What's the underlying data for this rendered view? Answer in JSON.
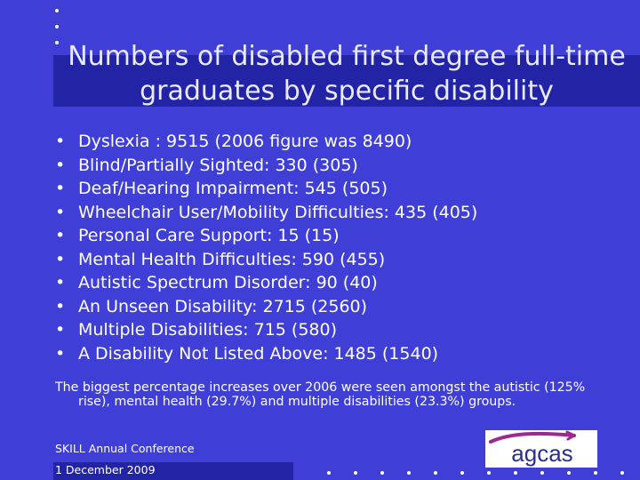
{
  "slide": {
    "title": "Numbers of disabled first degree full-time graduates by specific disability",
    "bullets": [
      "Dyslexia : 9515 (2006 figure was 8490)",
      "Blind/Partially Sighted: 330 (305)",
      "Deaf/Hearing Impairment: 545 (505)",
      "Wheelchair User/Mobility Difficulties: 435 (405)",
      "Personal Care Support: 15 (15)",
      "Mental Health Difficulties: 590 (455)",
      "Autistic Spectrum Disorder: 90 (40)",
      "An Unseen Disability: 2715 (2560)",
      "Multiple Disabilities: 715 (580)",
      "A Disability Not Listed Above: 1485 (1540)"
    ],
    "summary": "The biggest percentage increases over 2006 were seen amongst the autistic (125% rise), mental health (29.7%) and multiple disabilities (23.3%) groups.",
    "footer": {
      "conference": "SKILL Annual Conference",
      "date": "1 December 2009"
    },
    "logo": {
      "text": "agcas",
      "colors": {
        "text": "#2a2f8f",
        "swoosh": "#9c2a8e"
      }
    }
  },
  "theme": {
    "background": "#3f3fd8",
    "band": "#2323a6",
    "text": "#ffffff"
  }
}
